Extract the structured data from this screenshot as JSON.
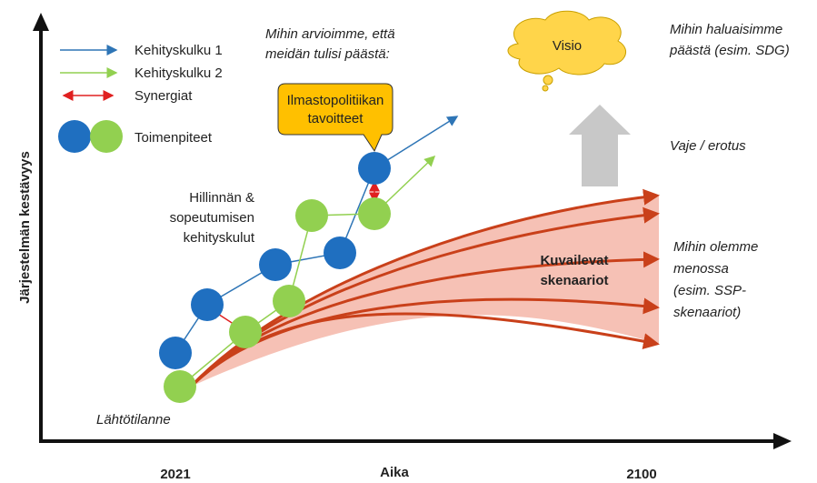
{
  "y_axis_label": "Järjestelmän kestävyys",
  "x_axis": {
    "label": "Aika",
    "start": "2021",
    "end": "2100"
  },
  "legend": [
    "Kehityskulku 1",
    "Kehityskulku 2",
    "Synergiat",
    "Toimenpiteet"
  ],
  "question_target": [
    "Mihin arvioimme, että",
    "meidän tulisi päästä:"
  ],
  "callout": [
    "Ilmastopolitiikan",
    "tavoitteet"
  ],
  "vision": "Visio",
  "vision_note": [
    "Mihin haluaisimme",
    "päästä (esim. SDG)"
  ],
  "gap": "Vaje / erotus",
  "heading_note": [
    "Mihin olemme",
    "menossa",
    "(esim. SSP-",
    "skenaariot)"
  ],
  "scenarios": [
    "Kuvailevat",
    "skenaariot"
  ],
  "pathways": [
    "Hillinnän &",
    "sopeutumisen",
    "kehityskulut"
  ],
  "start": "Lähtötilanne"
}
